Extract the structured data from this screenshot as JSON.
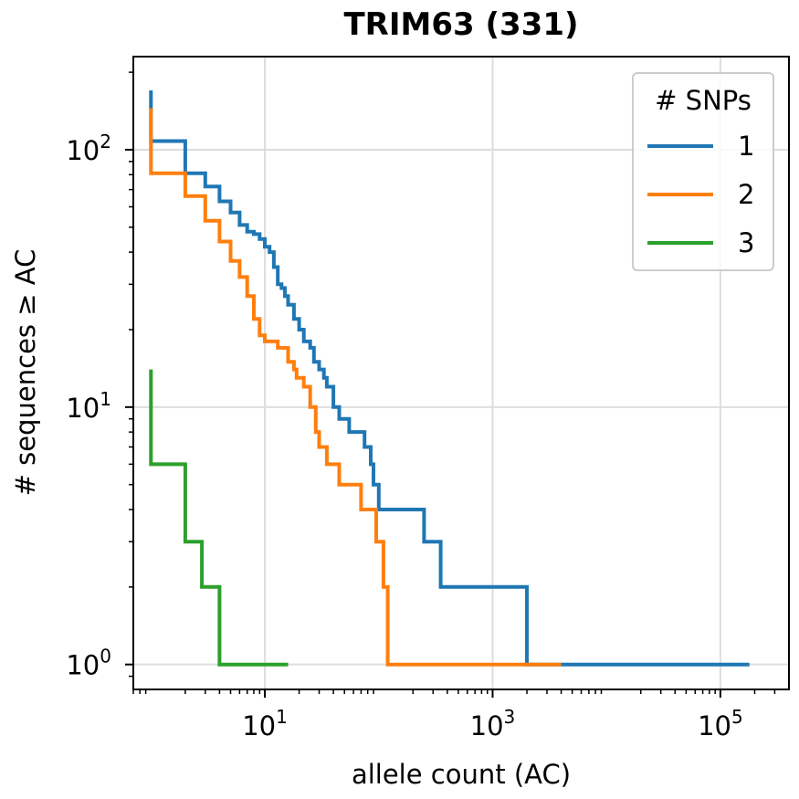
{
  "chart_data": {
    "type": "line",
    "drawstyle": "step",
    "title": "TRIM63 (331)",
    "xlabel": "allele count (AC)",
    "ylabel": "# sequences ≥ AC",
    "xscale": "log",
    "yscale": "log",
    "xlim": [
      0.7,
      400000
    ],
    "ylim": [
      0.8,
      230
    ],
    "grid": true,
    "x_ticks": [
      {
        "value": 10,
        "base": "10",
        "exp": "1"
      },
      {
        "value": 1000,
        "base": "10",
        "exp": "3"
      },
      {
        "value": 100000,
        "base": "10",
        "exp": "5"
      }
    ],
    "y_ticks": [
      {
        "value": 1,
        "base": "10",
        "exp": "0"
      },
      {
        "value": 10,
        "base": "10",
        "exp": "1"
      },
      {
        "value": 100,
        "base": "10",
        "exp": "2"
      }
    ],
    "legend": {
      "title": "# SNPs",
      "placement": "top-right"
    },
    "series": [
      {
        "name": "1",
        "color": "#1f77b4",
        "x": [
          1,
          1,
          2,
          3,
          4,
          5,
          6,
          7,
          8,
          9,
          10,
          11,
          12,
          13,
          14,
          15,
          16,
          18,
          20,
          22,
          25,
          27,
          30,
          33,
          35,
          40,
          45,
          55,
          75,
          85,
          90,
          100,
          250,
          350,
          2000,
          180000
        ],
        "y": [
          170,
          108,
          81,
          72,
          63,
          57,
          51,
          48,
          47,
          45,
          42,
          40,
          35,
          30,
          29,
          27,
          25,
          22,
          20,
          18,
          17,
          15,
          14,
          13,
          12,
          10,
          9,
          8,
          7,
          6,
          5,
          4,
          3,
          2,
          1,
          1
        ]
      },
      {
        "name": "2",
        "color": "#ff7f0e",
        "x": [
          1,
          1,
          2,
          3,
          4,
          5,
          6,
          7,
          8,
          9,
          10,
          13,
          16,
          18,
          19,
          22,
          25,
          28,
          30,
          35,
          45,
          70,
          95,
          110,
          120,
          500,
          4000
        ],
        "y": [
          145,
          81,
          66,
          53,
          44,
          37,
          32,
          27,
          22,
          19,
          18,
          17,
          15,
          14,
          13,
          12,
          10,
          8,
          7,
          6,
          5,
          4,
          3,
          2,
          1,
          1,
          1
        ]
      },
      {
        "name": "3",
        "color": "#2ca02c",
        "x": [
          1,
          1,
          2,
          2.8,
          4,
          5,
          16
        ],
        "y": [
          14,
          6,
          3,
          2,
          1,
          1,
          1
        ]
      }
    ]
  }
}
